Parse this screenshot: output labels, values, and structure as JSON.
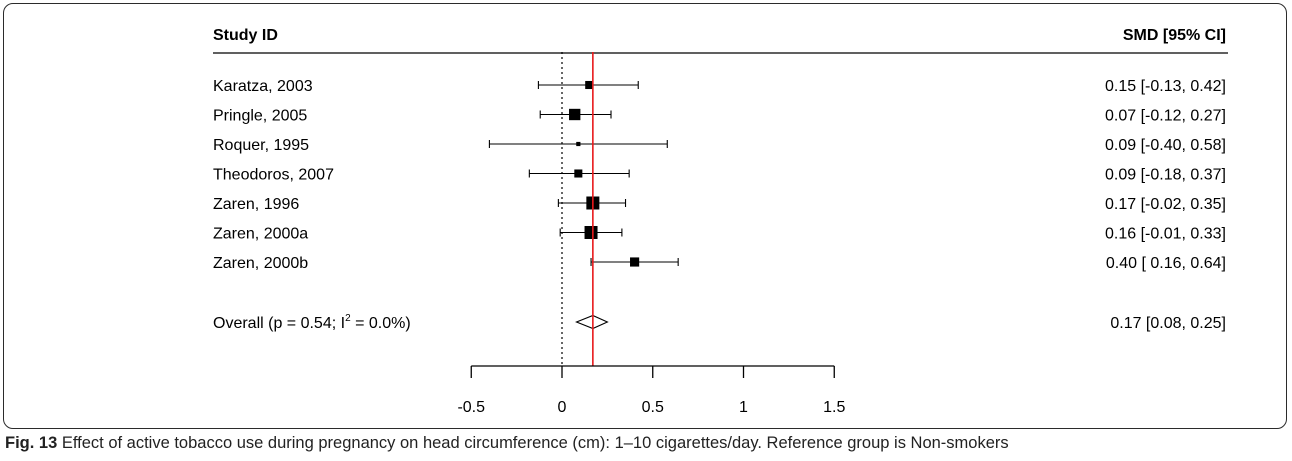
{
  "chart_data": {
    "type": "forest",
    "header_left": "Study ID",
    "header_right": "SMD [95% CI]",
    "studies": [
      {
        "label": "Karatza, 2003",
        "est": 0.15,
        "lo": -0.13,
        "hi": 0.42,
        "ci_text": "0.15 [-0.13, 0.42]",
        "weight": 0.55
      },
      {
        "label": "Pringle, 2005",
        "est": 0.07,
        "lo": -0.12,
        "hi": 0.27,
        "ci_text": "0.07 [-0.12, 0.27]",
        "weight": 0.85
      },
      {
        "label": "Roquer, 1995",
        "est": 0.09,
        "lo": -0.4,
        "hi": 0.58,
        "ci_text": "0.09 [-0.40, 0.58]",
        "weight": 0.2
      },
      {
        "label": "Theodoros, 2007",
        "est": 0.09,
        "lo": -0.18,
        "hi": 0.37,
        "ci_text": "0.09 [-0.18, 0.37]",
        "weight": 0.55
      },
      {
        "label": "Zaren, 1996",
        "est": 0.17,
        "lo": -0.02,
        "hi": 0.35,
        "ci_text": "0.17 [-0.02, 0.35]",
        "weight": 1.0
      },
      {
        "label": "Zaren, 2000a",
        "est": 0.16,
        "lo": -0.01,
        "hi": 0.33,
        "ci_text": "0.16 [-0.01, 0.33]",
        "weight": 1.0
      },
      {
        "label": "Zaren, 2000b",
        "est": 0.4,
        "lo": 0.16,
        "hi": 0.64,
        "ci_text": "0.40 [ 0.16, 0.64]",
        "weight": 0.65
      }
    ],
    "overall": {
      "label": "Overall (p = 0.54; I",
      "label_sup": "2",
      "label_tail": " = 0.0%)",
      "est": 0.17,
      "lo": 0.08,
      "hi": 0.25,
      "ci_text": "0.17 [0.08, 0.25]"
    },
    "xlim": [
      -0.5,
      1.5
    ],
    "xticks": [
      -0.5,
      0,
      0.5,
      1,
      1.5
    ],
    "xtick_labels": [
      "-0.5",
      "0",
      "0.5",
      "1",
      "1.5"
    ],
    "reference_line": 0,
    "summary_line": 0.17,
    "colors": {
      "summary_line": "#e8191c",
      "ink": "#000000"
    }
  },
  "caption": {
    "label": "Fig. 13",
    "text": " Effect of active tobacco use during pregnancy on head circumference (cm): 1–10 cigarettes/day. Reference group is Non-smokers"
  }
}
